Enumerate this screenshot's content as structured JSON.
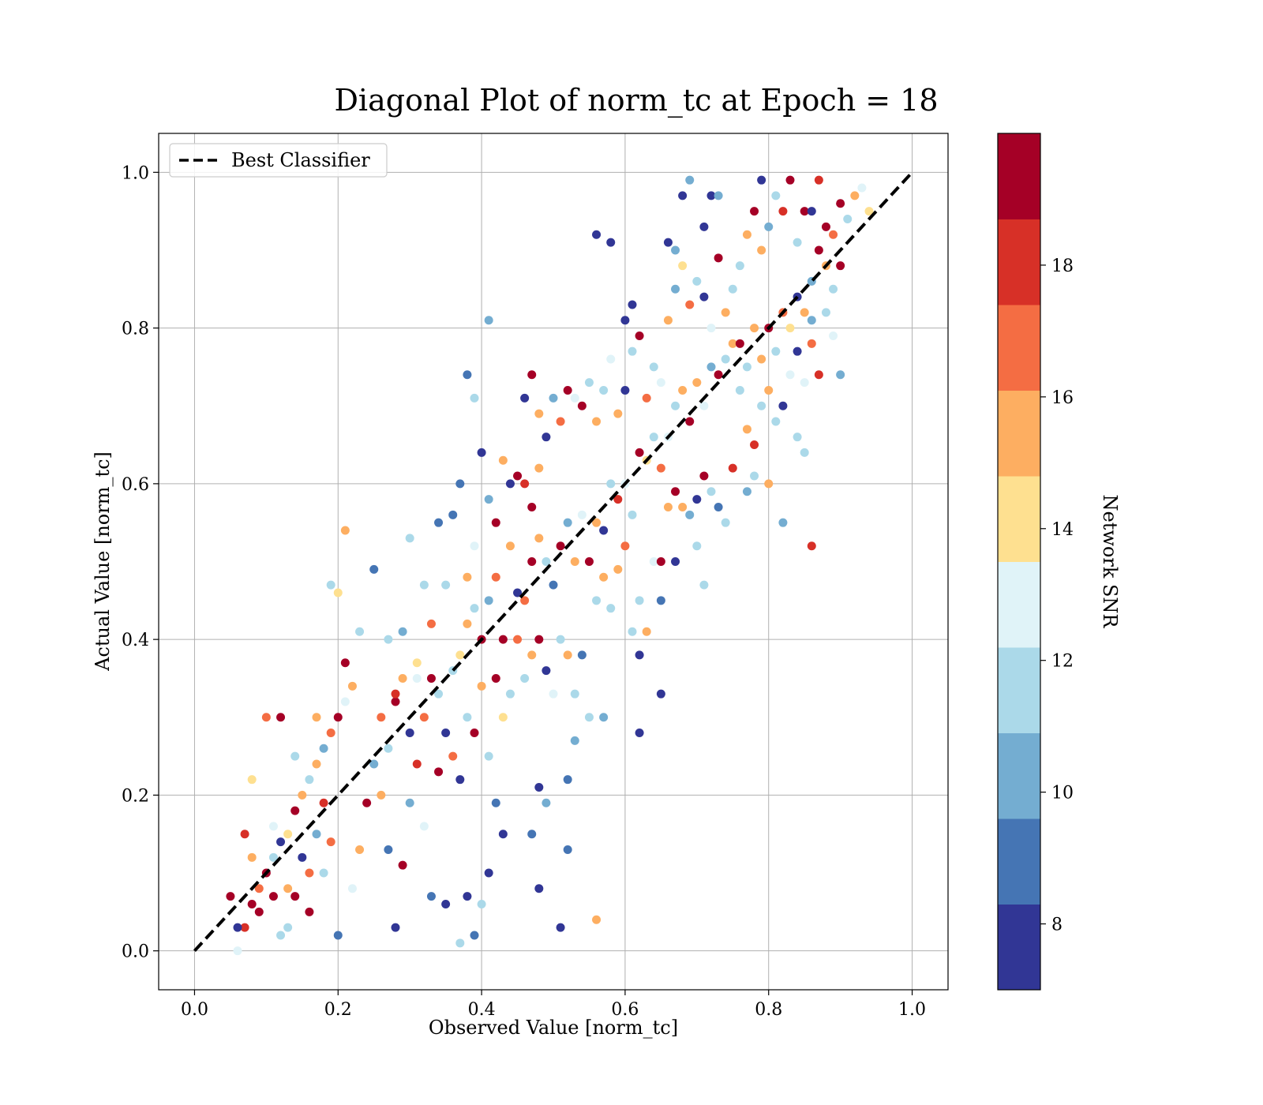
{
  "chart_data": {
    "type": "scatter",
    "title": "Diagonal Plot of norm_tc at Epoch = 18",
    "xlabel": "Observed Value [norm_tc]",
    "ylabel": "Actual Value [norm_tc]",
    "xlim": [
      -0.05,
      1.05
    ],
    "ylim": [
      -0.05,
      1.05
    ],
    "xticks": [
      "0.0",
      "0.2",
      "0.4",
      "0.6",
      "0.8",
      "1.0"
    ],
    "yticks": [
      "0.0",
      "0.2",
      "0.4",
      "0.6",
      "0.8",
      "1.0"
    ],
    "grid": true,
    "legend": {
      "location": "upper-left",
      "entries": [
        {
          "label": "Best Classifier",
          "style": "dashed",
          "color": "#000000"
        }
      ]
    },
    "reference_line": {
      "x": [
        0,
        1
      ],
      "y": [
        0,
        1
      ],
      "style": "dashed",
      "color": "#000000"
    },
    "colorbar": {
      "label": "Network SNR",
      "range": [
        7,
        20
      ],
      "ticks": [
        "8",
        "10",
        "12",
        "14",
        "16",
        "18"
      ],
      "colors": [
        "#313695",
        "#4575b4",
        "#74add1",
        "#abd9e9",
        "#e0f3f8",
        "#fee090",
        "#fdae61",
        "#f46d43",
        "#d73027",
        "#a50026"
      ]
    },
    "points": [
      [
        0.06,
        0.0,
        13
      ],
      [
        0.07,
        0.03,
        18
      ],
      [
        0.08,
        0.06,
        19
      ],
      [
        0.09,
        0.08,
        17
      ],
      [
        0.1,
        0.1,
        19
      ],
      [
        0.11,
        0.12,
        11
      ],
      [
        0.12,
        0.14,
        8
      ],
      [
        0.13,
        0.15,
        14
      ],
      [
        0.14,
        0.18,
        19
      ],
      [
        0.15,
        0.2,
        16
      ],
      [
        0.16,
        0.22,
        12
      ],
      [
        0.17,
        0.24,
        15
      ],
      [
        0.18,
        0.26,
        10
      ],
      [
        0.19,
        0.28,
        17
      ],
      [
        0.2,
        0.3,
        19
      ],
      [
        0.21,
        0.32,
        13
      ],
      [
        0.22,
        0.34,
        16
      ],
      [
        0.07,
        0.15,
        18
      ],
      [
        0.09,
        0.05,
        19
      ],
      [
        0.12,
        0.02,
        11
      ],
      [
        0.13,
        0.08,
        15
      ],
      [
        0.15,
        0.12,
        8
      ],
      [
        0.16,
        0.05,
        19
      ],
      [
        0.18,
        0.1,
        12
      ],
      [
        0.19,
        0.14,
        17
      ],
      [
        0.2,
        0.02,
        9
      ],
      [
        0.22,
        0.08,
        13
      ],
      [
        0.23,
        0.13,
        16
      ],
      [
        0.24,
        0.19,
        19
      ],
      [
        0.25,
        0.24,
        10
      ],
      [
        0.08,
        0.22,
        14
      ],
      [
        0.1,
        0.3,
        17
      ],
      [
        0.12,
        0.3,
        19
      ],
      [
        0.14,
        0.25,
        11
      ],
      [
        0.17,
        0.3,
        16
      ],
      [
        0.19,
        0.47,
        11
      ],
      [
        0.2,
        0.46,
        14
      ],
      [
        0.21,
        0.37,
        19
      ],
      [
        0.23,
        0.41,
        12
      ],
      [
        0.21,
        0.54,
        15
      ],
      [
        0.05,
        0.07,
        19
      ],
      [
        0.06,
        0.03,
        8
      ],
      [
        0.08,
        0.12,
        16
      ],
      [
        0.11,
        0.16,
        13
      ],
      [
        0.13,
        0.03,
        12
      ],
      [
        0.14,
        0.07,
        19
      ],
      [
        0.16,
        0.1,
        17
      ],
      [
        0.17,
        0.15,
        10
      ],
      [
        0.18,
        0.19,
        18
      ],
      [
        0.11,
        0.07,
        19
      ],
      [
        0.26,
        0.3,
        17
      ],
      [
        0.27,
        0.26,
        12
      ],
      [
        0.28,
        0.32,
        19
      ],
      [
        0.29,
        0.35,
        16
      ],
      [
        0.3,
        0.28,
        8
      ],
      [
        0.31,
        0.35,
        13
      ],
      [
        0.32,
        0.3,
        17
      ],
      [
        0.33,
        0.35,
        19
      ],
      [
        0.34,
        0.33,
        11
      ],
      [
        0.35,
        0.28,
        8
      ],
      [
        0.26,
        0.2,
        16
      ],
      [
        0.27,
        0.13,
        9
      ],
      [
        0.28,
        0.03,
        8
      ],
      [
        0.29,
        0.11,
        19
      ],
      [
        0.3,
        0.19,
        10
      ],
      [
        0.31,
        0.24,
        18
      ],
      [
        0.32,
        0.16,
        13
      ],
      [
        0.33,
        0.07,
        9
      ],
      [
        0.34,
        0.23,
        19
      ],
      [
        0.35,
        0.06,
        8
      ],
      [
        0.27,
        0.4,
        11
      ],
      [
        0.28,
        0.33,
        18
      ],
      [
        0.29,
        0.41,
        10
      ],
      [
        0.31,
        0.37,
        14
      ],
      [
        0.32,
        0.47,
        12
      ],
      [
        0.33,
        0.42,
        17
      ],
      [
        0.34,
        0.55,
        9
      ],
      [
        0.35,
        0.47,
        12
      ],
      [
        0.3,
        0.53,
        11
      ],
      [
        0.25,
        0.49,
        9
      ],
      [
        0.36,
        0.36,
        11
      ],
      [
        0.37,
        0.38,
        14
      ],
      [
        0.38,
        0.42,
        16
      ],
      [
        0.39,
        0.44,
        12
      ],
      [
        0.4,
        0.4,
        19
      ],
      [
        0.41,
        0.45,
        10
      ],
      [
        0.42,
        0.48,
        17
      ],
      [
        0.43,
        0.4,
        19
      ],
      [
        0.44,
        0.52,
        15
      ],
      [
        0.45,
        0.46,
        8
      ],
      [
        0.36,
        0.25,
        17
      ],
      [
        0.37,
        0.22,
        8
      ],
      [
        0.38,
        0.3,
        11
      ],
      [
        0.39,
        0.28,
        19
      ],
      [
        0.4,
        0.34,
        16
      ],
      [
        0.41,
        0.25,
        12
      ],
      [
        0.42,
        0.35,
        19
      ],
      [
        0.43,
        0.3,
        14
      ],
      [
        0.44,
        0.33,
        11
      ],
      [
        0.45,
        0.4,
        17
      ],
      [
        0.36,
        0.56,
        9
      ],
      [
        0.37,
        0.6,
        9
      ],
      [
        0.38,
        0.48,
        16
      ],
      [
        0.39,
        0.52,
        13
      ],
      [
        0.4,
        0.64,
        8
      ],
      [
        0.41,
        0.58,
        10
      ],
      [
        0.42,
        0.55,
        19
      ],
      [
        0.43,
        0.63,
        15
      ],
      [
        0.44,
        0.6,
        8
      ],
      [
        0.45,
        0.61,
        19
      ],
      [
        0.38,
        0.74,
        9
      ],
      [
        0.39,
        0.71,
        12
      ],
      [
        0.41,
        0.81,
        10
      ],
      [
        0.37,
        0.01,
        11
      ],
      [
        0.38,
        0.07,
        8
      ],
      [
        0.39,
        0.02,
        9
      ],
      [
        0.4,
        0.06,
        11
      ],
      [
        0.41,
        0.1,
        8
      ],
      [
        0.43,
        0.15,
        8
      ],
      [
        0.42,
        0.19,
        9
      ],
      [
        0.46,
        0.45,
        17
      ],
      [
        0.47,
        0.5,
        19
      ],
      [
        0.48,
        0.53,
        16
      ],
      [
        0.49,
        0.5,
        11
      ],
      [
        0.5,
        0.47,
        9
      ],
      [
        0.51,
        0.52,
        19
      ],
      [
        0.52,
        0.55,
        10
      ],
      [
        0.53,
        0.5,
        16
      ],
      [
        0.54,
        0.56,
        13
      ],
      [
        0.55,
        0.5,
        19
      ],
      [
        0.46,
        0.6,
        18
      ],
      [
        0.47,
        0.57,
        19
      ],
      [
        0.48,
        0.62,
        15
      ],
      [
        0.49,
        0.66,
        8
      ],
      [
        0.5,
        0.71,
        10
      ],
      [
        0.51,
        0.68,
        17
      ],
      [
        0.52,
        0.72,
        19
      ],
      [
        0.53,
        0.71,
        13
      ],
      [
        0.54,
        0.7,
        19
      ],
      [
        0.55,
        0.73,
        12
      ],
      [
        0.46,
        0.35,
        12
      ],
      [
        0.47,
        0.38,
        16
      ],
      [
        0.48,
        0.4,
        19
      ],
      [
        0.49,
        0.36,
        8
      ],
      [
        0.5,
        0.33,
        13
      ],
      [
        0.51,
        0.4,
        11
      ],
      [
        0.52,
        0.38,
        15
      ],
      [
        0.53,
        0.33,
        12
      ],
      [
        0.54,
        0.38,
        9
      ],
      [
        0.55,
        0.3,
        11
      ],
      [
        0.47,
        0.15,
        9
      ],
      [
        0.48,
        0.21,
        8
      ],
      [
        0.49,
        0.19,
        10
      ],
      [
        0.48,
        0.08,
        8
      ],
      [
        0.51,
        0.03,
        8
      ],
      [
        0.52,
        0.13,
        9
      ],
      [
        0.52,
        0.22,
        9
      ],
      [
        0.47,
        0.74,
        19
      ],
      [
        0.48,
        0.69,
        16
      ],
      [
        0.46,
        0.71,
        8
      ],
      [
        0.56,
        0.55,
        16
      ],
      [
        0.57,
        0.54,
        8
      ],
      [
        0.58,
        0.6,
        12
      ],
      [
        0.59,
        0.58,
        18
      ],
      [
        0.6,
        0.6,
        13
      ],
      [
        0.61,
        0.56,
        11
      ],
      [
        0.62,
        0.64,
        19
      ],
      [
        0.63,
        0.63,
        14
      ],
      [
        0.64,
        0.66,
        12
      ],
      [
        0.65,
        0.62,
        17
      ],
      [
        0.56,
        0.68,
        15
      ],
      [
        0.57,
        0.72,
        11
      ],
      [
        0.58,
        0.76,
        13
      ],
      [
        0.59,
        0.69,
        15
      ],
      [
        0.6,
        0.72,
        8
      ],
      [
        0.61,
        0.77,
        12
      ],
      [
        0.62,
        0.79,
        19
      ],
      [
        0.63,
        0.71,
        17
      ],
      [
        0.64,
        0.75,
        11
      ],
      [
        0.65,
        0.73,
        13
      ],
      [
        0.56,
        0.45,
        11
      ],
      [
        0.57,
        0.48,
        16
      ],
      [
        0.58,
        0.44,
        12
      ],
      [
        0.59,
        0.49,
        15
      ],
      [
        0.6,
        0.52,
        17
      ],
      [
        0.61,
        0.41,
        11
      ],
      [
        0.62,
        0.45,
        12
      ],
      [
        0.63,
        0.41,
        15
      ],
      [
        0.64,
        0.5,
        13
      ],
      [
        0.65,
        0.45,
        9
      ],
      [
        0.56,
        0.92,
        8
      ],
      [
        0.58,
        0.91,
        8
      ],
      [
        0.6,
        0.81,
        8
      ],
      [
        0.61,
        0.83,
        8
      ],
      [
        0.62,
        0.38,
        8
      ],
      [
        0.62,
        0.28,
        8
      ],
      [
        0.65,
        0.33,
        8
      ],
      [
        0.57,
        0.3,
        10
      ],
      [
        0.56,
        0.04,
        15
      ],
      [
        0.53,
        0.27,
        10
      ],
      [
        0.66,
        0.66,
        13
      ],
      [
        0.67,
        0.7,
        12
      ],
      [
        0.68,
        0.72,
        16
      ],
      [
        0.69,
        0.68,
        19
      ],
      [
        0.7,
        0.73,
        16
      ],
      [
        0.71,
        0.7,
        13
      ],
      [
        0.72,
        0.75,
        10
      ],
      [
        0.73,
        0.74,
        19
      ],
      [
        0.74,
        0.76,
        12
      ],
      [
        0.75,
        0.78,
        15
      ],
      [
        0.66,
        0.81,
        16
      ],
      [
        0.67,
        0.85,
        10
      ],
      [
        0.68,
        0.88,
        14
      ],
      [
        0.69,
        0.83,
        17
      ],
      [
        0.7,
        0.86,
        12
      ],
      [
        0.71,
        0.84,
        8
      ],
      [
        0.72,
        0.8,
        13
      ],
      [
        0.73,
        0.89,
        19
      ],
      [
        0.74,
        0.82,
        16
      ],
      [
        0.75,
        0.85,
        11
      ],
      [
        0.66,
        0.91,
        8
      ],
      [
        0.67,
        0.9,
        10
      ],
      [
        0.68,
        0.97,
        8
      ],
      [
        0.69,
        0.99,
        10
      ],
      [
        0.71,
        0.93,
        8
      ],
      [
        0.72,
        0.97,
        8
      ],
      [
        0.73,
        0.97,
        10
      ],
      [
        0.66,
        0.57,
        16
      ],
      [
        0.67,
        0.59,
        19
      ],
      [
        0.68,
        0.57,
        15
      ],
      [
        0.69,
        0.56,
        10
      ],
      [
        0.7,
        0.58,
        8
      ],
      [
        0.71,
        0.61,
        19
      ],
      [
        0.72,
        0.59,
        12
      ],
      [
        0.73,
        0.57,
        9
      ],
      [
        0.74,
        0.55,
        11
      ],
      [
        0.75,
        0.62,
        18
      ],
      [
        0.67,
        0.5,
        8
      ],
      [
        0.65,
        0.5,
        19
      ],
      [
        0.7,
        0.52,
        11
      ],
      [
        0.71,
        0.47,
        11
      ],
      [
        0.76,
        0.78,
        19
      ],
      [
        0.77,
        0.75,
        12
      ],
      [
        0.78,
        0.8,
        16
      ],
      [
        0.79,
        0.76,
        15
      ],
      [
        0.8,
        0.8,
        19
      ],
      [
        0.81,
        0.77,
        12
      ],
      [
        0.82,
        0.82,
        17
      ],
      [
        0.83,
        0.8,
        14
      ],
      [
        0.84,
        0.84,
        8
      ],
      [
        0.85,
        0.82,
        16
      ],
      [
        0.76,
        0.88,
        12
      ],
      [
        0.77,
        0.92,
        15
      ],
      [
        0.78,
        0.95,
        19
      ],
      [
        0.79,
        0.9,
        16
      ],
      [
        0.8,
        0.93,
        10
      ],
      [
        0.81,
        0.97,
        11
      ],
      [
        0.82,
        0.95,
        18
      ],
      [
        0.83,
        0.99,
        19
      ],
      [
        0.84,
        0.91,
        12
      ],
      [
        0.85,
        0.95,
        19
      ],
      [
        0.76,
        0.72,
        12
      ],
      [
        0.77,
        0.67,
        16
      ],
      [
        0.78,
        0.65,
        18
      ],
      [
        0.79,
        0.7,
        11
      ],
      [
        0.8,
        0.72,
        15
      ],
      [
        0.81,
        0.68,
        12
      ],
      [
        0.82,
        0.7,
        8
      ],
      [
        0.83,
        0.74,
        13
      ],
      [
        0.84,
        0.66,
        11
      ],
      [
        0.85,
        0.64,
        12
      ],
      [
        0.77,
        0.59,
        10
      ],
      [
        0.78,
        0.61,
        12
      ],
      [
        0.8,
        0.6,
        16
      ],
      [
        0.82,
        0.55,
        10
      ],
      [
        0.86,
        0.52,
        18
      ],
      [
        0.79,
        0.99,
        8
      ],
      [
        0.86,
        0.86,
        10
      ],
      [
        0.87,
        0.9,
        19
      ],
      [
        0.88,
        0.88,
        15
      ],
      [
        0.89,
        0.92,
        17
      ],
      [
        0.9,
        0.88,
        19
      ],
      [
        0.91,
        0.94,
        11
      ],
      [
        0.92,
        0.97,
        16
      ],
      [
        0.93,
        0.98,
        13
      ],
      [
        0.94,
        0.95,
        14
      ],
      [
        0.86,
        0.95,
        8
      ],
      [
        0.87,
        0.99,
        18
      ],
      [
        0.88,
        0.93,
        19
      ],
      [
        0.89,
        0.85,
        12
      ],
      [
        0.9,
        0.96,
        19
      ],
      [
        0.86,
        0.78,
        17
      ],
      [
        0.87,
        0.74,
        18
      ],
      [
        0.88,
        0.82,
        12
      ],
      [
        0.89,
        0.79,
        13
      ],
      [
        0.9,
        0.74,
        10
      ],
      [
        0.84,
        0.77,
        8
      ],
      [
        0.85,
        0.73,
        13
      ],
      [
        0.86,
        0.81,
        10
      ]
    ]
  }
}
